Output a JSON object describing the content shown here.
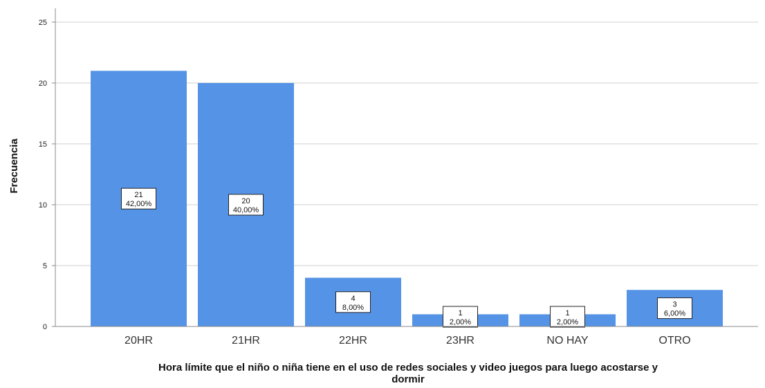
{
  "chart_data": {
    "type": "bar",
    "categories": [
      "20HR",
      "21HR",
      "22HR",
      "23HR",
      "NO HAY",
      "OTRO"
    ],
    "values": [
      21,
      20,
      4,
      1,
      1,
      3
    ],
    "data_labels": [
      {
        "count": "21",
        "pct": "42,00%"
      },
      {
        "count": "20",
        "pct": "40,00%"
      },
      {
        "count": "4",
        "pct": "8,00%"
      },
      {
        "count": "1",
        "pct": "2,00%"
      },
      {
        "count": "1",
        "pct": "2,00%"
      },
      {
        "count": "3",
        "pct": "6,00%"
      }
    ],
    "title": "",
    "ylabel": "Frecuencia",
    "xlabel_lines": [
      "Hora límite que el niño o niña tiene en el uso de redes sociales y video juegos para luego acostarse y",
      "dormir"
    ],
    "ylim": [
      0,
      25
    ],
    "yticks": [
      0,
      5,
      10,
      15,
      20,
      25
    ],
    "grid": true,
    "bar_color": "#5593e6",
    "grid_color": "#cfcfcf"
  }
}
